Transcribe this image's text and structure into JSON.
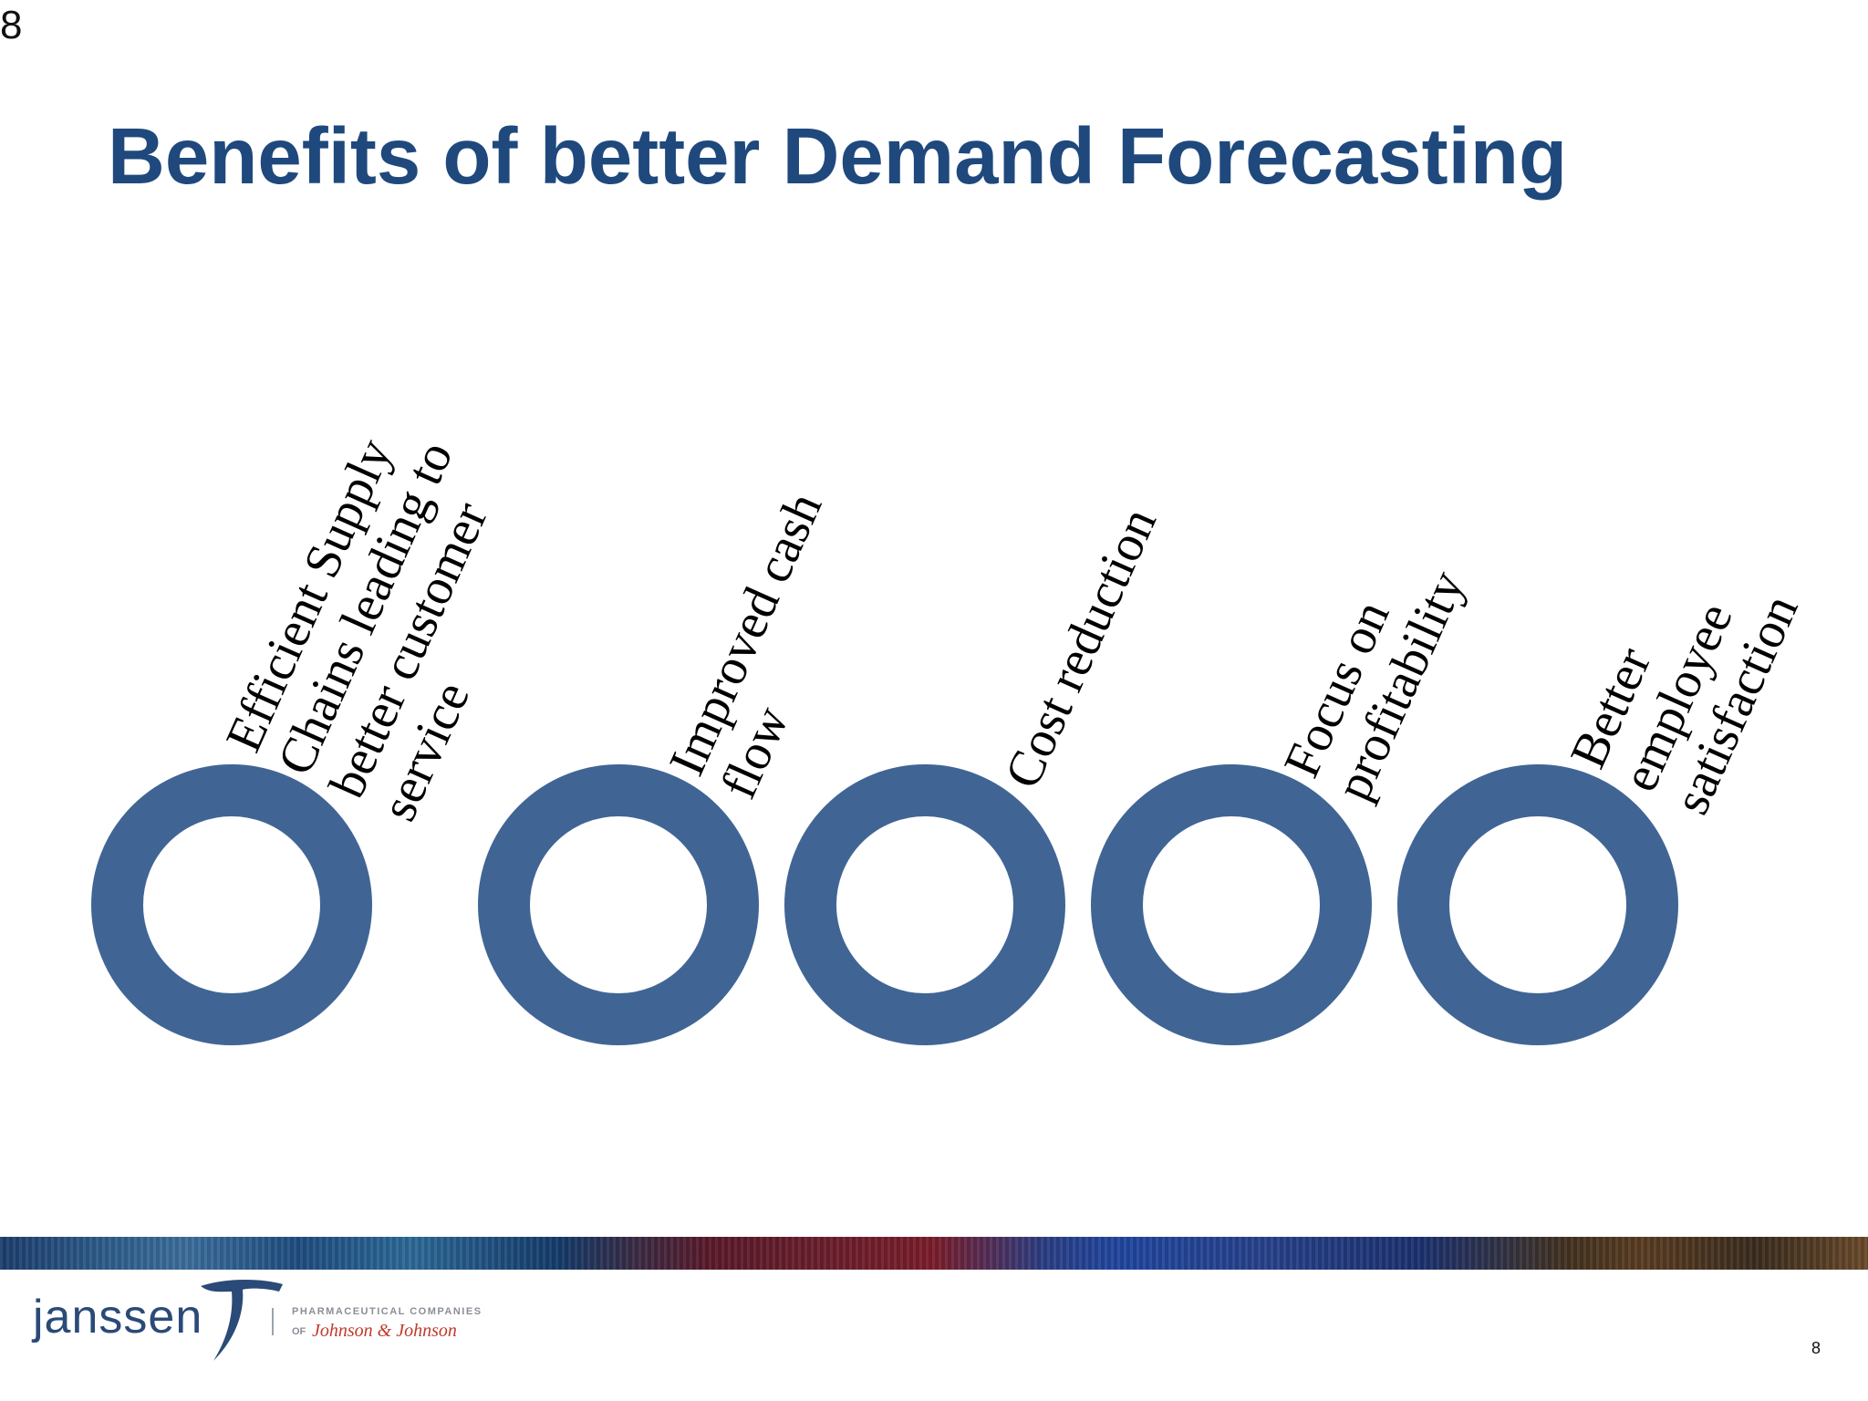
{
  "corner_number": "8",
  "title": "Benefits of better Demand Forecasting",
  "benefits": [
    {
      "lines": [
        "Efficient Supply",
        "Chains leading to",
        "better customer",
        "service"
      ]
    },
    {
      "lines": [
        "Improved cash",
        "flow"
      ]
    },
    {
      "lines": [
        "Cost reduction"
      ]
    },
    {
      "lines": [
        "Focus on",
        "profitability"
      ]
    },
    {
      "lines": [
        "Better",
        "employee",
        "satisfaction"
      ]
    }
  ],
  "ring_color": "#406594",
  "title_color": "#1f497d",
  "footer": {
    "logo_text": "janssen",
    "logo_icon": "janssen-swoosh-icon",
    "company_line": "PHARMACEUTICAL COMPANIES",
    "of_text": "OF",
    "parent_company": "Johnson & Johnson",
    "page_number": "8"
  }
}
